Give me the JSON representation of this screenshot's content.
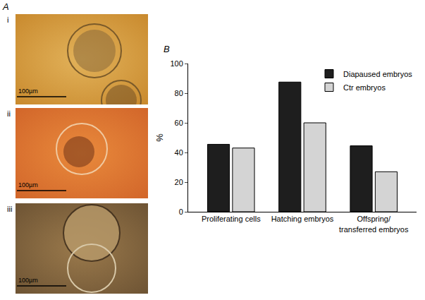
{
  "chart_data": {
    "type": "bar",
    "y_label": "%",
    "categories": [
      "Proliferating cells",
      "Hatching embryos",
      "Offspring/\ntransferred embryos"
    ],
    "series": [
      {
        "name": "Diapaused embryos",
        "color": "#1e1e1e",
        "values": [
          45.5,
          87.5,
          44.5
        ]
      },
      {
        "name": "Ctr embryos",
        "color": "#d4d4d4",
        "values": [
          43,
          60,
          27
        ]
      }
    ],
    "ylim": [
      0,
      100
    ],
    "yticks": [
      0,
      20,
      40,
      60,
      80,
      100
    ],
    "grid": false,
    "legend": "upper right"
  },
  "panel_a": {
    "label": "A",
    "images": [
      {
        "label": "i",
        "scale_bar": "100µm"
      },
      {
        "label": "ii",
        "scale_bar": "100µm"
      },
      {
        "label": "iii",
        "scale_bar": "100µm"
      }
    ]
  },
  "panel_b": {
    "label": "B"
  }
}
